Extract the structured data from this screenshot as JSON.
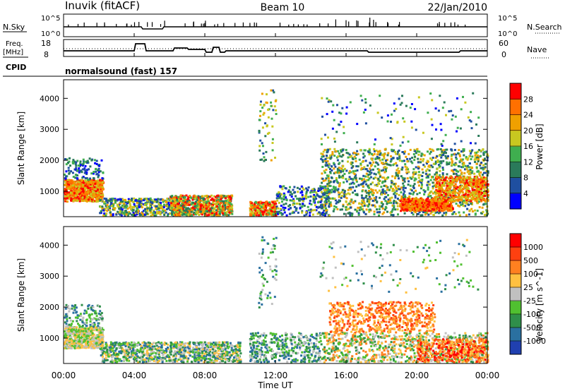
{
  "header": {
    "station": "Inuvik  (fitACF)",
    "beam": "Beam 10",
    "date": "22/Jan/2010"
  },
  "noise_panel": {
    "left_label": "N.Sky",
    "left_ticks": [
      "10^5",
      "10^0"
    ],
    "right_label": "N.Search",
    "right_ticks": [
      "10^5",
      "10^0"
    ]
  },
  "freq_panel": {
    "left_label_1": "Freq.",
    "left_label_2": "[MHz]",
    "left_ticks": [
      "18",
      "8"
    ],
    "right_label": "Nave",
    "right_ticks": [
      "60",
      "0"
    ],
    "cpid_label": "CPID",
    "cpid_value": "normalsound (fast) 157"
  },
  "chart_data": [
    {
      "type": "heatmap",
      "name": "power",
      "ylabel": "Slant Range [km]",
      "xlabel": "",
      "ylim": [
        180,
        4600
      ],
      "y_ticks": [
        "4000",
        "3000",
        "2000",
        "1000"
      ],
      "colorbar_label": "Power [dB]",
      "colorbar_ticks": [
        "28",
        "24",
        "20",
        "16",
        "12",
        "8",
        "4"
      ],
      "colors": [
        "#0000ff",
        "#1f4fa0",
        "#2a7a5a",
        "#3fae4f",
        "#c8c820",
        "#f0a000",
        "#ff7000",
        "#ff0000"
      ]
    },
    {
      "type": "heatmap",
      "name": "velocity",
      "ylabel": "Slant Range [km]",
      "xlabel": "Time UT",
      "ylim": [
        180,
        4600
      ],
      "y_ticks": [
        "4000",
        "3000",
        "2000",
        "1000"
      ],
      "x_ticks": [
        "00:00",
        "04:00",
        "08:00",
        "12:00",
        "16:00",
        "20:00",
        "00:00"
      ],
      "colorbar_label": "Velocity [m s^-1]",
      "colorbar_ticks": [
        "1000",
        "500",
        "100",
        "25",
        "-25",
        "-100",
        "-500",
        "-1000"
      ],
      "colors": [
        "#2040b0",
        "#2a70a0",
        "#2f8f4a",
        "#50c030",
        "#c0c0c0",
        "#ffc040",
        "#ff8020",
        "#ff4010",
        "#ff0000"
      ]
    }
  ]
}
